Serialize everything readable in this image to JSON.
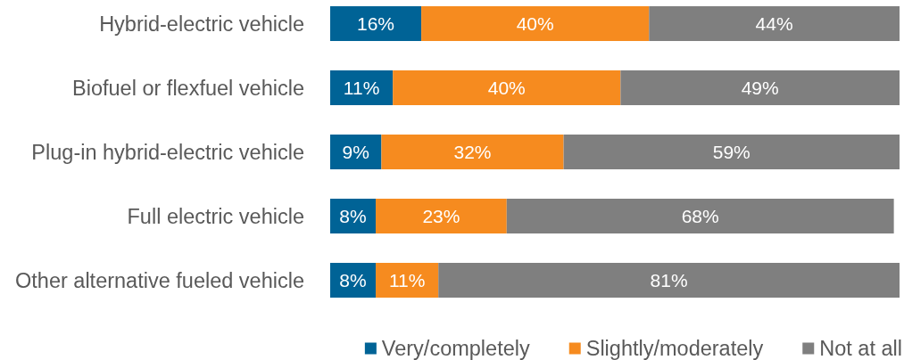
{
  "chart_data": {
    "type": "bar",
    "orientation": "horizontal",
    "stacked": true,
    "categories": [
      "Hybrid-electric vehicle",
      "Biofuel or flexfuel vehicle",
      "Plug-in hybrid-electric vehicle",
      "Full electric vehicle",
      "Other alternative fueled vehicle"
    ],
    "xlim": [
      0,
      100
    ],
    "tick_labels": "y",
    "legend": "bottom right",
    "series": [
      {
        "name": "Very/completely",
        "color": "#006396",
        "values": [
          16,
          11,
          9,
          8,
          8
        ],
        "value_labels": [
          "16%",
          "11%",
          "9%",
          "8%",
          "8%"
        ]
      },
      {
        "name": "Slightly/moderately",
        "color": "#f68b1f",
        "values": [
          40,
          40,
          32,
          23,
          11
        ],
        "value_labels": [
          "40%",
          "40%",
          "32%",
          "23%",
          "11%"
        ]
      },
      {
        "name": "Not at all",
        "color": "#7f7f7f",
        "values": [
          44,
          49,
          59,
          68,
          81
        ],
        "value_labels": [
          "44%",
          "49%",
          "59%",
          "68%",
          "81%"
        ]
      }
    ]
  }
}
